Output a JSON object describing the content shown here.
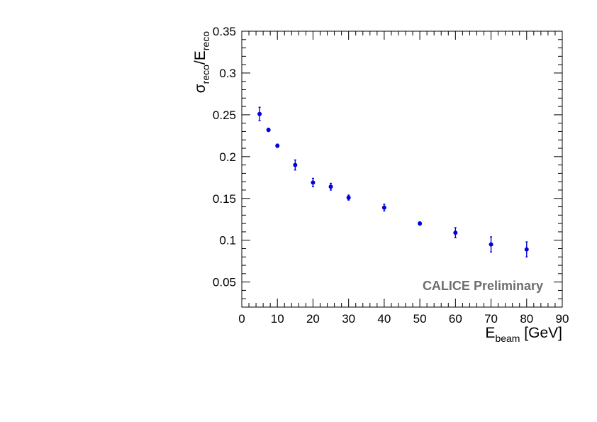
{
  "chart_data": {
    "type": "scatter",
    "x": [
      5,
      7.5,
      10,
      15,
      20,
      25,
      30,
      40,
      50,
      60,
      70,
      80
    ],
    "y": [
      0.251,
      0.232,
      0.213,
      0.19,
      0.169,
      0.164,
      0.151,
      0.139,
      0.12,
      0.109,
      0.095,
      0.089
    ],
    "y_err": [
      0.008,
      0.002,
      0.002,
      0.006,
      0.005,
      0.004,
      0.003,
      0.004,
      0.002,
      0.006,
      0.009,
      0.009
    ],
    "xlim": [
      0,
      90
    ],
    "ylim": [
      0.02,
      0.35
    ],
    "x_ticks": [
      "0",
      "10",
      "20",
      "30",
      "40",
      "50",
      "60",
      "70",
      "80",
      "90"
    ],
    "y_ticks": [
      "0.05",
      "0.1",
      "0.15",
      "0.2",
      "0.25",
      "0.3",
      "0.35"
    ],
    "xlabel": {
      "main": "E",
      "sub": "beam",
      "suffix": " [GeV]"
    },
    "ylabel": {
      "main": "σ",
      "sub1": "reco",
      "mid": "/E",
      "sub2": "reco"
    },
    "annotation": "CALICE Preliminary",
    "grid": false,
    "marker_color": "#0000dd",
    "annotation_color": "#6e6e6e"
  }
}
